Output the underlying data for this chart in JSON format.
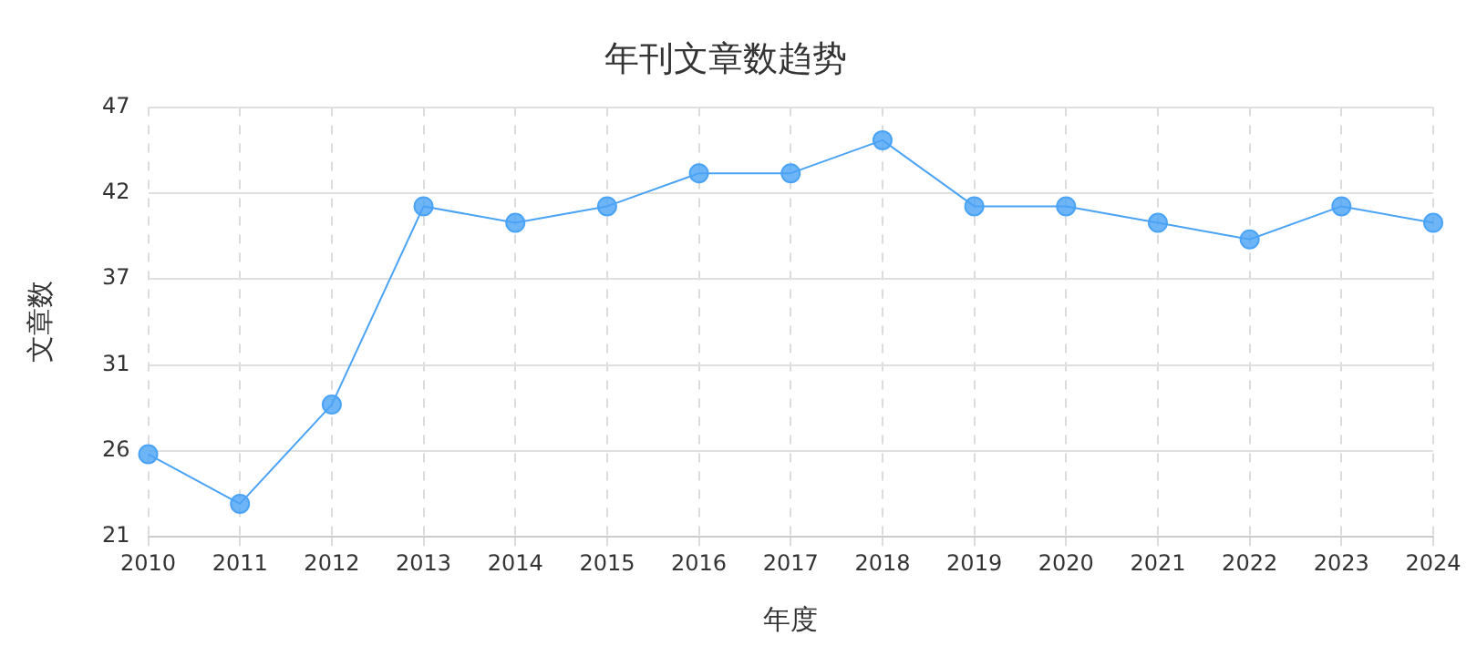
{
  "chart_data": {
    "type": "line",
    "title": "年刊文章数趋势",
    "xlabel": "年度",
    "ylabel": "文章数",
    "categories": [
      "2010",
      "2011",
      "2012",
      "2013",
      "2014",
      "2015",
      "2016",
      "2017",
      "2018",
      "2019",
      "2020",
      "2021",
      "2022",
      "2023",
      "2024"
    ],
    "series": [
      {
        "color": "#4aa3f5",
        "values": [
          26,
          23,
          29,
          41,
          40,
          41,
          43,
          43,
          45,
          41,
          41,
          40,
          39,
          41,
          40
        ]
      }
    ],
    "ylim": [
      21,
      47
    ],
    "yticks": [
      21,
      {
        "value": 26.2,
        "label": "26"
      },
      {
        "value": 31.4,
        "label": "31"
      },
      {
        "value": 36.6,
        "label": "37"
      },
      {
        "value": 41.8,
        "label": "42"
      },
      47
    ],
    "grid": true,
    "legend": false,
    "marker": "circle",
    "line_style": "solid"
  }
}
